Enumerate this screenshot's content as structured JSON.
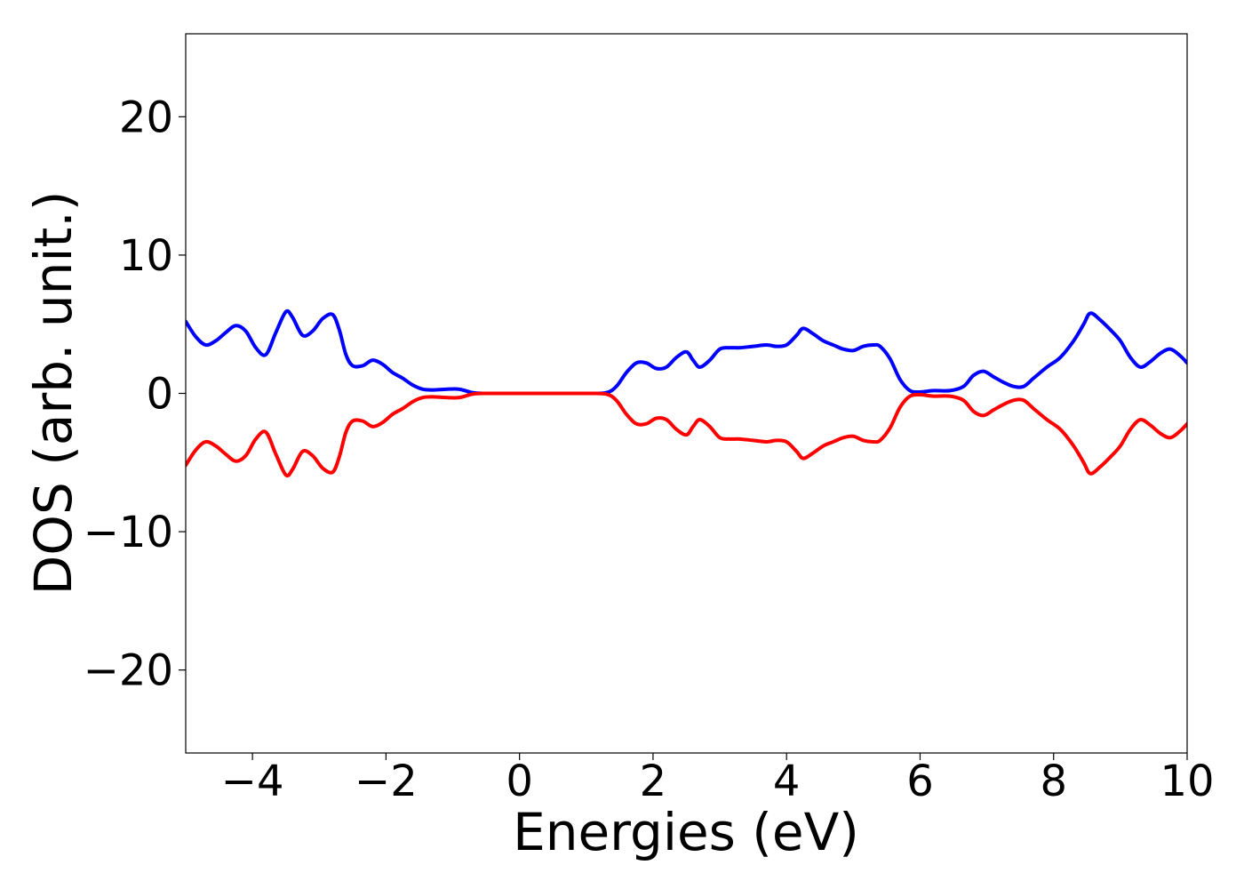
{
  "chart_data": {
    "type": "line",
    "title": "",
    "xlabel": "Energies (eV)",
    "ylabel": "DOS (arb. unit.)",
    "xlim": [
      -5,
      10
    ],
    "ylim": [
      -26,
      26
    ],
    "grid": false,
    "legend": "none",
    "x_ticks": [
      -4,
      -2,
      0,
      2,
      4,
      6,
      8,
      10
    ],
    "x_tick_labels": [
      "−4",
      "−2",
      "0",
      "2",
      "4",
      "6",
      "8",
      "10"
    ],
    "y_ticks": [
      20,
      10,
      0,
      -10,
      -20
    ],
    "y_tick_labels": [
      "20",
      "10",
      "0",
      "−10",
      "−20"
    ],
    "series": [
      {
        "color": "#0000ff",
        "x": [
          -5.0,
          -4.85,
          -4.7,
          -4.55,
          -4.4,
          -4.25,
          -4.1,
          -3.95,
          -3.8,
          -3.65,
          -3.5,
          -3.4,
          -3.25,
          -3.1,
          -2.95,
          -2.8,
          -2.7,
          -2.6,
          -2.5,
          -2.35,
          -2.2,
          -2.05,
          -1.9,
          -1.75,
          -1.6,
          -1.45,
          -1.3,
          -1.1,
          -0.9,
          -0.7,
          -0.5,
          0.0,
          0.5,
          1.0,
          1.3,
          1.45,
          1.6,
          1.75,
          1.9,
          2.05,
          2.2,
          2.35,
          2.5,
          2.6,
          2.7,
          2.85,
          3.0,
          3.15,
          3.3,
          3.5,
          3.7,
          3.85,
          4.0,
          4.15,
          4.25,
          4.4,
          4.55,
          4.7,
          4.85,
          5.0,
          5.15,
          5.3,
          5.4,
          5.55,
          5.7,
          5.85,
          6.0,
          6.2,
          6.45,
          6.65,
          6.8,
          6.95,
          7.1,
          7.25,
          7.4,
          7.55,
          7.7,
          7.9,
          8.1,
          8.3,
          8.45,
          8.55,
          8.7,
          8.85,
          9.0,
          9.15,
          9.3,
          9.45,
          9.6,
          9.75,
          9.9,
          10.0
        ],
        "y": [
          5.2,
          4.1,
          3.5,
          3.8,
          4.4,
          4.9,
          4.5,
          3.3,
          2.8,
          4.4,
          5.9,
          5.5,
          4.2,
          4.5,
          5.4,
          5.7,
          4.6,
          2.8,
          2.0,
          2.0,
          2.4,
          2.1,
          1.5,
          1.1,
          0.6,
          0.3,
          0.25,
          0.3,
          0.3,
          0.05,
          0.0,
          0.0,
          0.0,
          0.0,
          0.05,
          0.5,
          1.5,
          2.2,
          2.2,
          1.8,
          1.9,
          2.6,
          3.0,
          2.4,
          1.9,
          2.4,
          3.2,
          3.3,
          3.3,
          3.4,
          3.5,
          3.4,
          3.5,
          4.2,
          4.7,
          4.3,
          3.8,
          3.5,
          3.2,
          3.1,
          3.4,
          3.5,
          3.4,
          2.5,
          1.0,
          0.2,
          0.1,
          0.2,
          0.2,
          0.5,
          1.3,
          1.6,
          1.2,
          0.8,
          0.5,
          0.5,
          1.1,
          1.9,
          2.6,
          3.8,
          5.0,
          5.8,
          5.3,
          4.6,
          3.8,
          2.6,
          1.9,
          2.3,
          2.9,
          3.2,
          2.7,
          2.2
        ]
      },
      {
        "color": "#ff0000",
        "x": [
          -5.0,
          -4.85,
          -4.7,
          -4.55,
          -4.4,
          -4.25,
          -4.1,
          -3.95,
          -3.8,
          -3.65,
          -3.5,
          -3.4,
          -3.25,
          -3.1,
          -2.95,
          -2.8,
          -2.7,
          -2.6,
          -2.5,
          -2.35,
          -2.2,
          -2.05,
          -1.9,
          -1.75,
          -1.6,
          -1.45,
          -1.3,
          -1.1,
          -0.9,
          -0.7,
          -0.5,
          0.0,
          0.5,
          1.0,
          1.3,
          1.45,
          1.6,
          1.75,
          1.9,
          2.05,
          2.2,
          2.35,
          2.5,
          2.6,
          2.7,
          2.85,
          3.0,
          3.15,
          3.3,
          3.5,
          3.7,
          3.85,
          4.0,
          4.15,
          4.25,
          4.4,
          4.55,
          4.7,
          4.85,
          5.0,
          5.15,
          5.3,
          5.4,
          5.55,
          5.7,
          5.85,
          6.0,
          6.2,
          6.45,
          6.65,
          6.8,
          6.95,
          7.1,
          7.25,
          7.4,
          7.55,
          7.7,
          7.9,
          8.1,
          8.3,
          8.45,
          8.55,
          8.7,
          8.85,
          9.0,
          9.15,
          9.3,
          9.45,
          9.6,
          9.75,
          9.9,
          10.0
        ],
        "y": [
          -5.2,
          -4.1,
          -3.5,
          -3.8,
          -4.4,
          -4.9,
          -4.5,
          -3.3,
          -2.8,
          -4.4,
          -5.9,
          -5.5,
          -4.2,
          -4.5,
          -5.4,
          -5.7,
          -4.6,
          -2.8,
          -2.0,
          -2.0,
          -2.4,
          -2.1,
          -1.5,
          -1.1,
          -0.6,
          -0.3,
          -0.25,
          -0.3,
          -0.3,
          -0.05,
          0.0,
          0.0,
          0.0,
          0.0,
          -0.05,
          -0.5,
          -1.5,
          -2.2,
          -2.2,
          -1.8,
          -1.9,
          -2.6,
          -3.0,
          -2.4,
          -1.9,
          -2.4,
          -3.2,
          -3.3,
          -3.3,
          -3.4,
          -3.5,
          -3.4,
          -3.5,
          -4.2,
          -4.7,
          -4.3,
          -3.8,
          -3.5,
          -3.2,
          -3.1,
          -3.4,
          -3.5,
          -3.4,
          -2.5,
          -1.0,
          -0.2,
          -0.1,
          -0.2,
          -0.2,
          -0.5,
          -1.3,
          -1.6,
          -1.2,
          -0.8,
          -0.5,
          -0.5,
          -1.1,
          -1.9,
          -2.6,
          -3.8,
          -5.0,
          -5.8,
          -5.3,
          -4.6,
          -3.8,
          -2.6,
          -1.9,
          -2.3,
          -2.9,
          -3.2,
          -2.7,
          -2.2
        ]
      }
    ]
  }
}
